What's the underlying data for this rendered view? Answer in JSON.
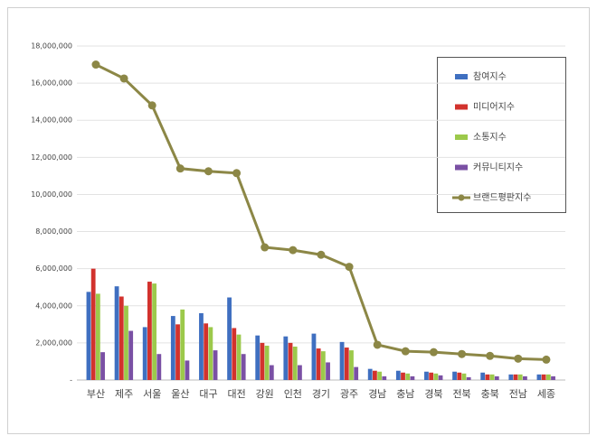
{
  "chart_data": {
    "type": "bar",
    "legend": "upper right",
    "grid": true,
    "categories": [
      "부산",
      "제주",
      "서울",
      "울산",
      "대구",
      "대전",
      "강원",
      "인천",
      "경기",
      "광주",
      "경남",
      "충남",
      "경북",
      "전북",
      "충북",
      "전남",
      "세종"
    ],
    "series": [
      {
        "name": "참여지수",
        "color": "#3f6fc0",
        "type": "bar",
        "values": [
          4750000,
          5050000,
          2850000,
          3450000,
          3600000,
          4450000,
          2400000,
          2350000,
          2500000,
          2050000,
          600000,
          500000,
          450000,
          450000,
          400000,
          300000,
          300000
        ]
      },
      {
        "name": "미디어지수",
        "color": "#d2322d",
        "type": "bar",
        "values": [
          6000000,
          4500000,
          5300000,
          3000000,
          3050000,
          2800000,
          2000000,
          2000000,
          1700000,
          1750000,
          500000,
          400000,
          400000,
          400000,
          300000,
          300000,
          300000
        ]
      },
      {
        "name": "소통지수",
        "color": "#9cc94b",
        "type": "bar",
        "values": [
          4650000,
          4000000,
          5200000,
          3800000,
          2850000,
          2450000,
          1850000,
          1800000,
          1550000,
          1600000,
          450000,
          350000,
          350000,
          350000,
          300000,
          300000,
          300000
        ]
      },
      {
        "name": "커뮤니티지수",
        "color": "#7a50a4",
        "type": "bar",
        "values": [
          1500000,
          2650000,
          1400000,
          1050000,
          1600000,
          1400000,
          800000,
          800000,
          950000,
          700000,
          200000,
          200000,
          250000,
          150000,
          200000,
          200000,
          200000
        ]
      },
      {
        "name": "브랜드평판지수",
        "color": "#8c8746",
        "type": "line",
        "values": [
          17000000,
          16250000,
          14800000,
          11400000,
          11250000,
          11150000,
          7150000,
          7000000,
          6750000,
          6100000,
          1900000,
          1550000,
          1500000,
          1400000,
          1300000,
          1150000,
          1100000
        ]
      }
    ],
    "ylim": [
      0,
      18000000
    ],
    "yticks": [
      {
        "value": 0,
        "label": "-"
      },
      {
        "value": 2000000,
        "label": "2,000,000"
      },
      {
        "value": 4000000,
        "label": "4,000,000"
      },
      {
        "value": 6000000,
        "label": "6,000,000"
      },
      {
        "value": 8000000,
        "label": "8,000,000"
      },
      {
        "value": 10000000,
        "label": "10,000,000"
      },
      {
        "value": 12000000,
        "label": "12,000,000"
      },
      {
        "value": 14000000,
        "label": "14,000,000"
      },
      {
        "value": 16000000,
        "label": "16,000,000"
      },
      {
        "value": 18000000,
        "label": "18,000,000"
      }
    ]
  }
}
